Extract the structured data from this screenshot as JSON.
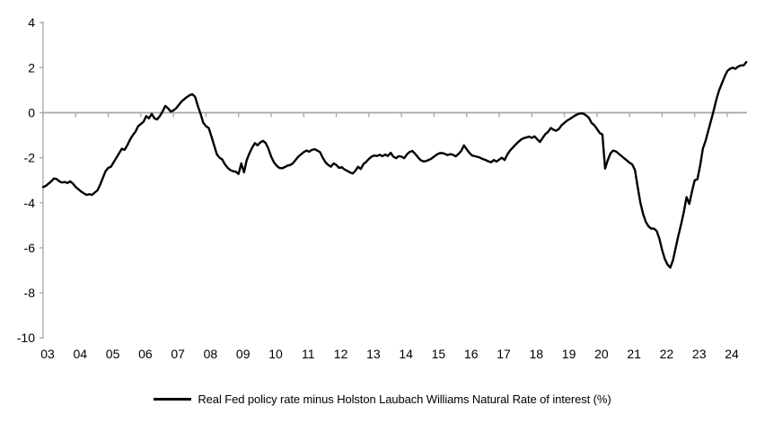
{
  "chart_data": {
    "type": "line",
    "title": "",
    "xlabel": "",
    "ylabel": "",
    "ylim": [
      -10,
      4
    ],
    "y_ticks": [
      4,
      2,
      0,
      -2,
      -4,
      -6,
      -8,
      -10
    ],
    "y_tick_labels": [
      "4",
      "2",
      "0",
      "-2",
      "-4",
      "-6",
      "-8",
      "-10"
    ],
    "x_tick_labels": [
      "03",
      "04",
      "05",
      "06",
      "07",
      "08",
      "09",
      "10",
      "11",
      "12",
      "13",
      "14",
      "15",
      "16",
      "17",
      "18",
      "19",
      "20",
      "21",
      "22",
      "23",
      "24"
    ],
    "grid": "off",
    "zero_line": true,
    "axis_color": "#a6a6a6",
    "legend_position": "bottom-center",
    "series": [
      {
        "name": "Real Fed policy rate minus Holston Laubach Williams Natural Rate of interest (%)",
        "color": "#000000",
        "frequency": "monthly",
        "start": "2003-01",
        "end": "2024-08",
        "values": [
          -3.3,
          -3.25,
          -3.15,
          -3.05,
          -2.92,
          -2.95,
          -3.05,
          -3.1,
          -3.08,
          -3.12,
          -3.05,
          -3.15,
          -3.3,
          -3.4,
          -3.5,
          -3.58,
          -3.65,
          -3.62,
          -3.65,
          -3.55,
          -3.45,
          -3.2,
          -2.9,
          -2.6,
          -2.45,
          -2.4,
          -2.2,
          -2.0,
          -1.8,
          -1.6,
          -1.65,
          -1.45,
          -1.2,
          -1.0,
          -0.85,
          -0.6,
          -0.5,
          -0.4,
          -0.15,
          -0.25,
          -0.05,
          -0.25,
          -0.3,
          -0.15,
          0.05,
          0.3,
          0.2,
          0.05,
          0.1,
          0.2,
          0.35,
          0.5,
          0.6,
          0.7,
          0.78,
          0.82,
          0.7,
          0.3,
          -0.05,
          -0.45,
          -0.6,
          -0.68,
          -1.05,
          -1.45,
          -1.85,
          -2.0,
          -2.08,
          -2.3,
          -2.45,
          -2.55,
          -2.6,
          -2.62,
          -2.72,
          -2.25,
          -2.65,
          -2.1,
          -1.8,
          -1.55,
          -1.35,
          -1.45,
          -1.32,
          -1.25,
          -1.35,
          -1.6,
          -1.95,
          -2.2,
          -2.35,
          -2.45,
          -2.47,
          -2.42,
          -2.35,
          -2.32,
          -2.25,
          -2.1,
          -1.95,
          -1.85,
          -1.75,
          -1.68,
          -1.73,
          -1.65,
          -1.62,
          -1.68,
          -1.75,
          -2.0,
          -2.2,
          -2.32,
          -2.4,
          -2.25,
          -2.32,
          -2.45,
          -2.42,
          -2.52,
          -2.58,
          -2.65,
          -2.7,
          -2.58,
          -2.4,
          -2.5,
          -2.28,
          -2.18,
          -2.05,
          -1.95,
          -1.9,
          -1.92,
          -1.87,
          -1.93,
          -1.86,
          -1.92,
          -1.78,
          -1.95,
          -2.02,
          -1.93,
          -1.95,
          -2.02,
          -1.85,
          -1.74,
          -1.7,
          -1.82,
          -1.97,
          -2.1,
          -2.16,
          -2.15,
          -2.1,
          -2.04,
          -1.95,
          -1.86,
          -1.8,
          -1.79,
          -1.83,
          -1.88,
          -1.84,
          -1.87,
          -1.94,
          -1.83,
          -1.7,
          -1.45,
          -1.62,
          -1.78,
          -1.9,
          -1.93,
          -1.96,
          -2.0,
          -2.06,
          -2.1,
          -2.16,
          -2.2,
          -2.1,
          -2.17,
          -2.08,
          -2.0,
          -2.1,
          -1.85,
          -1.68,
          -1.55,
          -1.42,
          -1.3,
          -1.2,
          -1.13,
          -1.1,
          -1.06,
          -1.12,
          -1.05,
          -1.18,
          -1.3,
          -1.12,
          -0.95,
          -0.85,
          -0.68,
          -0.76,
          -0.8,
          -0.72,
          -0.55,
          -0.45,
          -0.35,
          -0.28,
          -0.2,
          -0.12,
          -0.06,
          -0.03,
          -0.04,
          -0.12,
          -0.22,
          -0.45,
          -0.55,
          -0.72,
          -0.9,
          -0.97,
          -2.48,
          -2.1,
          -1.8,
          -1.68,
          -1.72,
          -1.82,
          -1.92,
          -2.02,
          -2.12,
          -2.22,
          -2.3,
          -2.55,
          -3.3,
          -4.0,
          -4.5,
          -4.85,
          -5.05,
          -5.15,
          -5.15,
          -5.25,
          -5.6,
          -6.1,
          -6.5,
          -6.75,
          -6.88,
          -6.55,
          -6.0,
          -5.45,
          -4.95,
          -4.4,
          -3.75,
          -4.05,
          -3.5,
          -3.0,
          -2.95,
          -2.35,
          -1.6,
          -1.25,
          -0.8,
          -0.35,
          0.1,
          0.6,
          1.0,
          1.3,
          1.6,
          1.85,
          1.95,
          2.0,
          1.95,
          2.05,
          2.1,
          2.1,
          2.25
        ]
      }
    ]
  },
  "legend": {
    "label": "Real Fed policy rate minus Holston Laubach Williams Natural Rate of interest (%)"
  }
}
